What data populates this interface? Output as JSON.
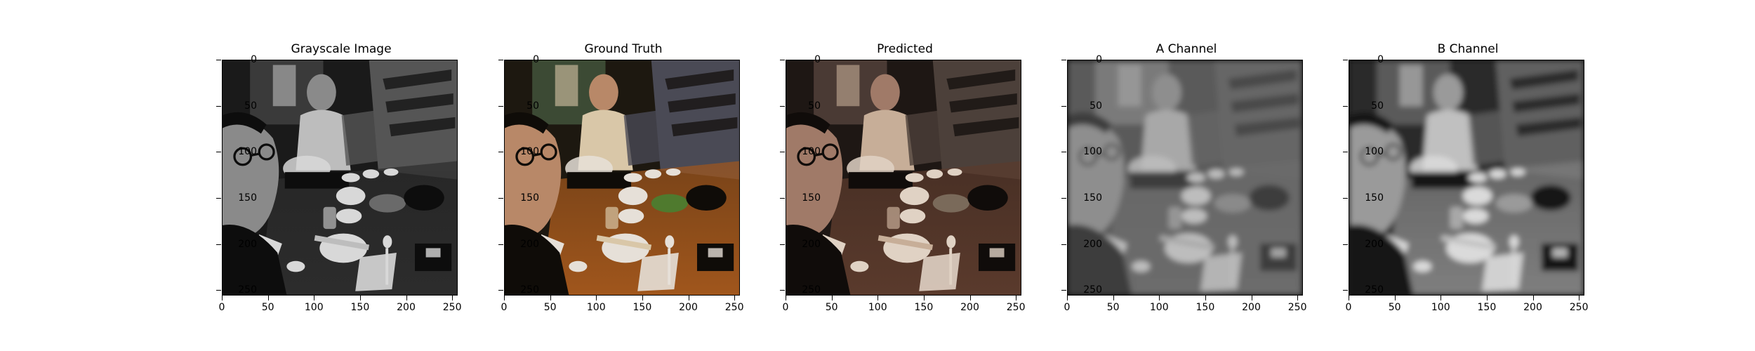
{
  "panels": [
    {
      "title": "Grayscale Image",
      "variant": "gray"
    },
    {
      "title": "Ground Truth",
      "variant": "color"
    },
    {
      "title": "Predicted",
      "variant": "sepia"
    },
    {
      "title": "A Channel",
      "variant": "blurgray"
    },
    {
      "title": "B Channel",
      "variant": "gray2"
    }
  ],
  "axes": {
    "y_ticks": [
      "0",
      "50",
      "100",
      "150",
      "200",
      "250"
    ],
    "x_ticks": [
      "0",
      "50",
      "100",
      "150",
      "200",
      "250"
    ],
    "y_values": [
      0,
      50,
      100,
      150,
      200,
      250
    ],
    "x_values": [
      0,
      50,
      100,
      150,
      200,
      250
    ],
    "extent": 256
  }
}
